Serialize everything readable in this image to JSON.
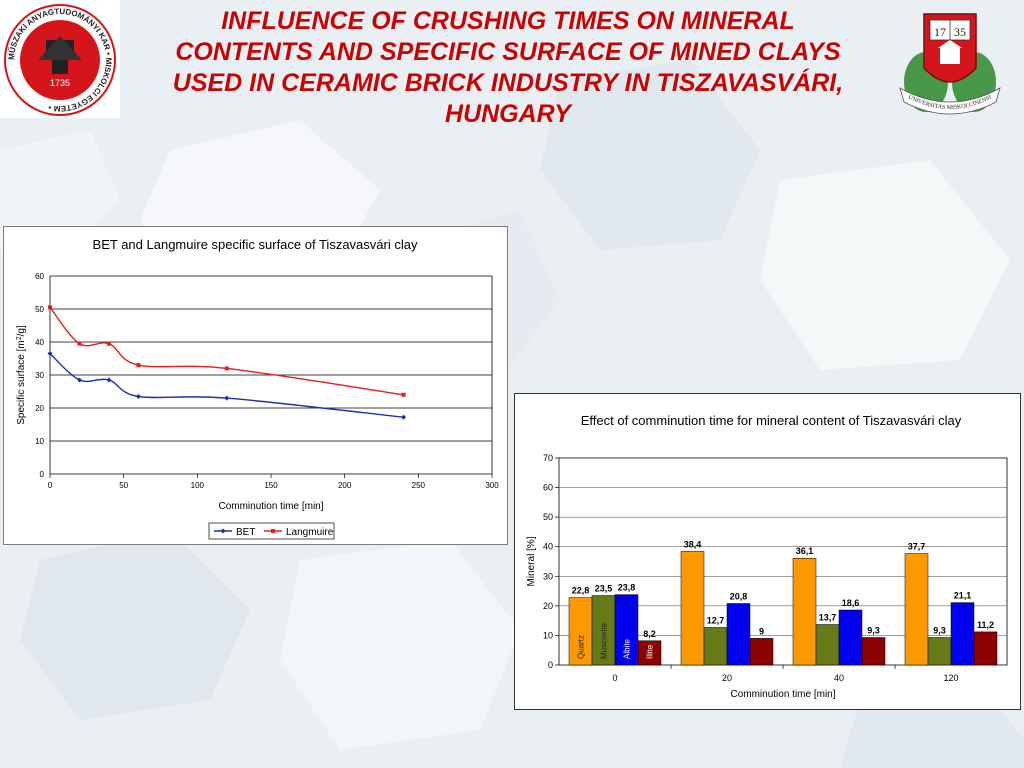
{
  "slide": {
    "title_lines": [
      "INFLUENCE OF CRUSHING TIMES ON MINERAL",
      "CONTENTS AND SPECIFIC SURFACE OF MINED CLAYS",
      "USED IN CERAMIC BRICK INDUSTRY IN TISZAVASVÁRI,",
      "HUNGARY"
    ],
    "left_logo": {
      "ring_text": "MŰSZAKI ANYAGTUDOMÁNYI KAR • MISKOLCI EGYETEM •",
      "year": "1735"
    },
    "right_logo": {
      "year_left": "17",
      "year_right": "35",
      "ribbon_text": "UNIVERSITAS MISKOLCINENSIS"
    },
    "colors": {
      "title": "#cc0000",
      "logo_red": "#d4151c",
      "logo_green": "#2a8a2a"
    }
  },
  "chart_data": [
    {
      "type": "line",
      "title": "BET and Langmuire specific surface of Tiszavasvári clay",
      "xlabel": "Comminution time [min]",
      "ylabel": "Specific surface [m2/g]",
      "ylabel_prefix": "Specific surface [m",
      "ylabel_sup": "2",
      "ylabel_suffix": "/g]",
      "xlim": [
        0,
        300
      ],
      "ylim": [
        0,
        60
      ],
      "xticks": [
        0,
        50,
        100,
        150,
        200,
        250,
        300
      ],
      "yticks": [
        0,
        10,
        20,
        30,
        40,
        50,
        60
      ],
      "grid": "horizontal",
      "legend_position": "bottom",
      "x": [
        0,
        20,
        40,
        60,
        120,
        240
      ],
      "series": [
        {
          "name": "BET",
          "color": "#1f2fb3",
          "marker": "diamond",
          "values": [
            36.5,
            28.5,
            28.5,
            23.5,
            23,
            17.2
          ]
        },
        {
          "name": "Langmuire",
          "color": "#e0201c",
          "marker": "square",
          "values": [
            50.5,
            39.5,
            39.5,
            33,
            32,
            24
          ]
        }
      ]
    },
    {
      "type": "bar",
      "title": "Effect of comminution time for mineral content of Tiszavasvári clay",
      "xlabel": "Comminution time [min]",
      "ylabel": "Mineral [%]",
      "ylim": [
        0,
        70
      ],
      "yticks": [
        0,
        10,
        20,
        30,
        40,
        50,
        60,
        70
      ],
      "grid": "horizontal",
      "categories": [
        "0",
        "20",
        "40",
        "120"
      ],
      "value_labels": true,
      "series": [
        {
          "name": "Quartz",
          "color": "#ff9900",
          "values": [
            22.8,
            38.4,
            36.1,
            37.7
          ],
          "labels": [
            "22,8",
            "38,4",
            "36,1",
            "37,7"
          ]
        },
        {
          "name": "Muscovite",
          "color": "#667a1a",
          "values": [
            23.5,
            12.7,
            13.7,
            9.3
          ],
          "labels": [
            "23,5",
            "12,7",
            "13,7",
            "9,3"
          ]
        },
        {
          "name": "Albite",
          "color": "#0000ee",
          "values": [
            23.8,
            20.8,
            18.6,
            21.1
          ],
          "labels": [
            "23,8",
            "20,8",
            "18,6",
            "21,1"
          ]
        },
        {
          "name": "Illite",
          "color": "#8b0000",
          "values": [
            8.2,
            9,
            9.3,
            11.2
          ],
          "labels": [
            "8,2",
            "9",
            "9,3",
            "11,2"
          ]
        }
      ]
    }
  ]
}
